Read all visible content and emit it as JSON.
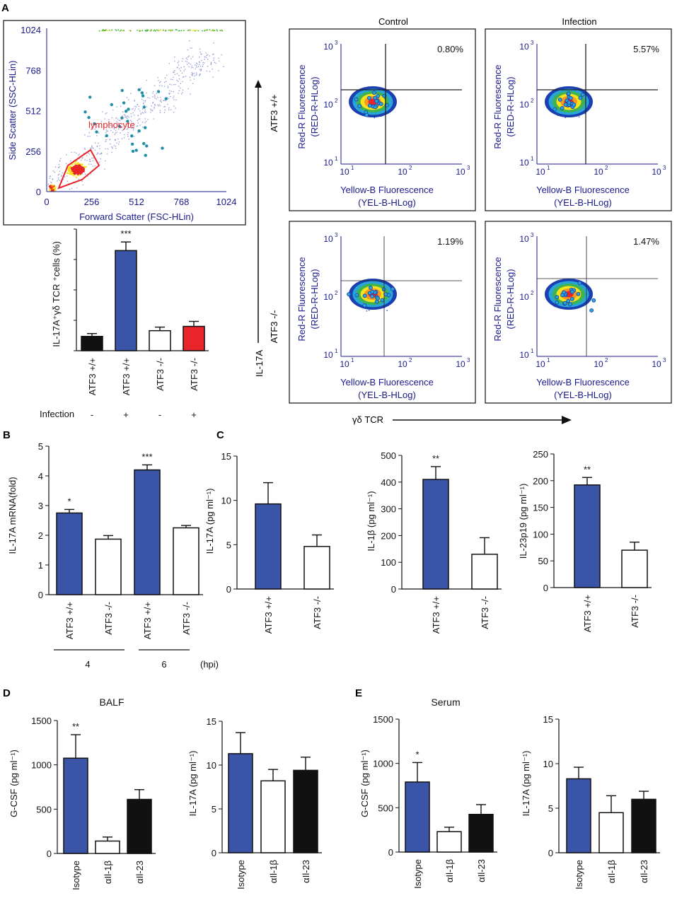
{
  "panel_labels": [
    "A",
    "B",
    "C",
    "D",
    "E"
  ],
  "colors": {
    "blue": "#3a55a8",
    "black": "#111111",
    "white": "#ffffff",
    "red": "#e8252a",
    "flow_axis": "#1a1a8c",
    "gate": "#e8252a"
  },
  "scatter": {
    "x_label": "Forward Scatter (FSC-HLin)",
    "y_label": "Side Scatter (SSC-HLin)",
    "x_ticks": [
      "0",
      "256",
      "512",
      "768",
      "1024"
    ],
    "y_ticks": [
      "0",
      "256",
      "512",
      "768",
      "1024"
    ],
    "gate_label": "lymphocyte"
  },
  "flow": {
    "col_titles": [
      "Control",
      "Infection"
    ],
    "row_labels": [
      "ATF3 +/+",
      "ATF3 -/-"
    ],
    "x_label_1": "Yellow-B Fluorescence",
    "x_label_2": "(YEL-B-HLog)",
    "y_label_1": "Red-R Fluorescence",
    "y_label_2": "(RED-R-HLog)",
    "ticks": [
      "10",
      "10",
      "10"
    ],
    "tick_exps": [
      "1",
      "2",
      "3"
    ],
    "percents": [
      "0.80%",
      "5.57%",
      "1.19%",
      "1.47%"
    ],
    "arrow_y_label": "IL-17A",
    "arrow_x_label": "γδ TCR"
  },
  "chart_data": [
    {
      "id": "A-bar",
      "type": "bar",
      "ylabel": "IL-17A⁺γδ TCR ⁺cells (%)",
      "categories": [
        "ATF3 +/+",
        "ATF3 +/+",
        "ATF3 -/-",
        "ATF3 -/-"
      ],
      "infection_label": "Infection",
      "infection": [
        "-",
        "+",
        "-",
        "+"
      ],
      "values": [
        1.0,
        7.0,
        1.4,
        1.7
      ],
      "errors": [
        0.2,
        0.6,
        0.25,
        0.35
      ],
      "fills": [
        "#111111",
        "#3a55a8",
        "#ffffff",
        "#e8252a"
      ],
      "sig": [
        "",
        "***",
        "",
        ""
      ],
      "ylim": [
        0,
        8.5
      ]
    },
    {
      "id": "B",
      "type": "bar",
      "ylabel": "IL-17A mRNA(fold)",
      "yticks": [
        "0",
        "1",
        "2",
        "3",
        "4",
        "5"
      ],
      "ylim": [
        0,
        5
      ],
      "categories": [
        "ATF3 +/+",
        "ATF3 -/-",
        "ATF3 +/+",
        "ATF3 -/-"
      ],
      "values": [
        2.75,
        1.87,
        4.2,
        2.25
      ],
      "errors": [
        0.12,
        0.12,
        0.17,
        0.08
      ],
      "fills": [
        "#3a55a8",
        "#ffffff",
        "#3a55a8",
        "#ffffff"
      ],
      "sig": [
        "*",
        "",
        "***",
        ""
      ],
      "groups": [
        "4",
        "6"
      ],
      "group_unit": "(hpi)"
    },
    {
      "id": "C1",
      "type": "bar",
      "ylabel": "IL-17A (pg ml⁻¹)",
      "yticks": [
        "0",
        "5",
        "10",
        "15"
      ],
      "ylim": [
        0,
        15
      ],
      "categories": [
        "ATF3 +/+",
        "ATF3 -/-"
      ],
      "values": [
        9.6,
        4.8
      ],
      "errors": [
        2.4,
        1.3
      ],
      "fills": [
        "#3a55a8",
        "#ffffff"
      ],
      "sig": [
        "",
        ""
      ]
    },
    {
      "id": "C2",
      "type": "bar",
      "ylabel": "IL-1β (pg ml⁻¹)",
      "yticks": [
        "0",
        "100",
        "200",
        "300",
        "400",
        "500"
      ],
      "ylim": [
        0,
        500
      ],
      "categories": [
        "ATF3 +/+",
        "ATF3 -/-"
      ],
      "values": [
        410,
        130
      ],
      "errors": [
        48,
        62
      ],
      "fills": [
        "#3a55a8",
        "#ffffff"
      ],
      "sig": [
        "**",
        ""
      ]
    },
    {
      "id": "C3",
      "type": "bar",
      "ylabel": "IL-23p19 (pg ml⁻¹)",
      "yticks": [
        "0",
        "50",
        "100",
        "150",
        "200",
        "250"
      ],
      "ylim": [
        0,
        250
      ],
      "categories": [
        "ATF3 +/+",
        "ATF3 -/-"
      ],
      "values": [
        192,
        70
      ],
      "errors": [
        14,
        15
      ],
      "fills": [
        "#3a55a8",
        "#ffffff"
      ],
      "sig": [
        "**",
        ""
      ]
    },
    {
      "id": "D1",
      "type": "bar",
      "title": "BALF",
      "ylabel": "G-CSF (pg ml⁻¹)",
      "yticks": [
        "0",
        "500",
        "1000",
        "1500"
      ],
      "ylim": [
        0,
        1500
      ],
      "categories": [
        "Isotype",
        "αIl-1β",
        "αIl-23"
      ],
      "values": [
        1075,
        140,
        610
      ],
      "errors": [
        265,
        45,
        110
      ],
      "fills": [
        "#3a55a8",
        "#ffffff",
        "#111111"
      ],
      "sig": [
        "**",
        "",
        ""
      ]
    },
    {
      "id": "D2",
      "type": "bar",
      "ylabel": "IL-17A (pg ml⁻¹)",
      "yticks": [
        "0",
        "5",
        "10",
        "15"
      ],
      "ylim": [
        0,
        15
      ],
      "categories": [
        "Isotype",
        "αIl-1β",
        "αIl-23"
      ],
      "values": [
        11.3,
        8.2,
        9.4
      ],
      "errors": [
        2.4,
        1.3,
        1.5
      ],
      "fills": [
        "#3a55a8",
        "#ffffff",
        "#111111"
      ],
      "sig": [
        "",
        "",
        ""
      ]
    },
    {
      "id": "E1",
      "type": "bar",
      "title": "Serum",
      "ylabel": "G-CSF (pg ml⁻¹)",
      "yticks": [
        "0",
        "500",
        "1000",
        "1500"
      ],
      "ylim": [
        0,
        1500
      ],
      "categories": [
        "Isotype",
        "αIl-1β",
        "αIl-23"
      ],
      "values": [
        790,
        230,
        425
      ],
      "errors": [
        220,
        50,
        110
      ],
      "fills": [
        "#3a55a8",
        "#ffffff",
        "#111111"
      ],
      "sig": [
        "*",
        "",
        ""
      ]
    },
    {
      "id": "E2",
      "type": "bar",
      "ylabel": "IL-17A (pg ml⁻¹)",
      "yticks": [
        "0",
        "5",
        "10",
        "15"
      ],
      "ylim": [
        0,
        15
      ],
      "categories": [
        "Isotype",
        "αIl-1β",
        "αIl-23"
      ],
      "values": [
        8.3,
        4.5,
        6.0
      ],
      "errors": [
        1.3,
        1.9,
        0.9
      ],
      "fills": [
        "#3a55a8",
        "#ffffff",
        "#111111"
      ],
      "sig": [
        "",
        "",
        ""
      ]
    }
  ]
}
